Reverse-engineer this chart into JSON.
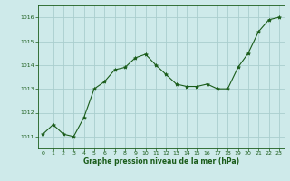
{
  "hours": [
    0,
    1,
    2,
    3,
    4,
    5,
    6,
    7,
    8,
    9,
    10,
    11,
    12,
    13,
    14,
    15,
    16,
    17,
    18,
    19,
    20,
    21,
    22,
    23
  ],
  "pressure": [
    1011.1,
    1011.5,
    1011.1,
    1011.0,
    1011.8,
    1013.0,
    1013.3,
    1013.8,
    1013.9,
    1014.3,
    1014.45,
    1014.0,
    1013.6,
    1013.2,
    1013.1,
    1013.1,
    1013.2,
    1013.0,
    1013.0,
    1013.9,
    1014.5,
    1015.4,
    1015.9,
    1016.0
  ],
  "ylim": [
    1010.5,
    1016.5
  ],
  "yticks": [
    1011,
    1012,
    1013,
    1014,
    1015,
    1016
  ],
  "xticks": [
    0,
    1,
    2,
    3,
    4,
    5,
    6,
    7,
    8,
    9,
    10,
    11,
    12,
    13,
    14,
    15,
    16,
    17,
    18,
    19,
    20,
    21,
    22,
    23
  ],
  "line_color": "#1a5c1a",
  "marker_color": "#1a5c1a",
  "bg_color": "#ceeaea",
  "grid_color": "#aacece",
  "axes_bg": "#ceeaea",
  "xlabel": "Graphe pression niveau de la mer (hPa)",
  "xlabel_color": "#1a5c1a",
  "tick_color": "#1a5c1a",
  "spine_color": "#1a5c1a"
}
